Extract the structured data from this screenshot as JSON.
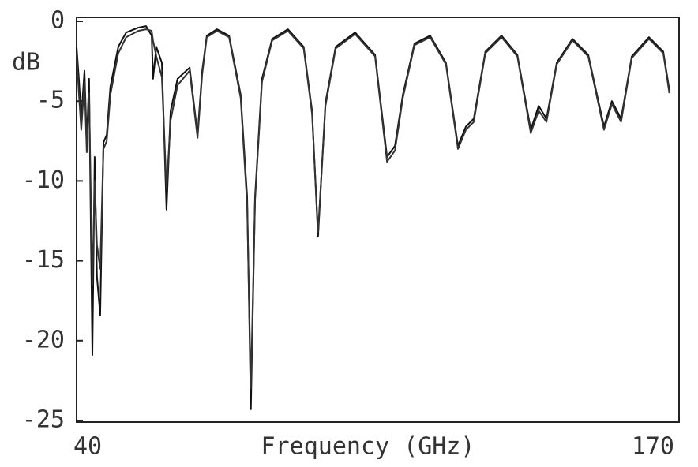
{
  "chart_data": {
    "type": "line",
    "x_label": "Frequency (GHz)",
    "y_label": "dB",
    "x": [
      40.0,
      40.5,
      41.0,
      41.7,
      42.2,
      42.7,
      43.4,
      43.9,
      44.4,
      45.1,
      45.8,
      46.5,
      47.3,
      49.0,
      50.7,
      53.3,
      55.0,
      56.2,
      56.5,
      57.2,
      58.4,
      59.4,
      60.3,
      61.8,
      64.4,
      66.1,
      67.1,
      68.1,
      70.3,
      72.9,
      75.4,
      76.8,
      77.6,
      78.5,
      80.0,
      82.2,
      85.6,
      89.0,
      90.8,
      92.1,
      93.7,
      95.9,
      100.1,
      104.4,
      107.0,
      108.7,
      110.4,
      112.9,
      116.3,
      119.7,
      122.3,
      124.0,
      125.7,
      128.2,
      131.7,
      135.1,
      138.0,
      139.7,
      141.4,
      143.6,
      147.0,
      150.4,
      153.8,
      155.5,
      157.5,
      159.8,
      163.5,
      166.6,
      167.9
    ],
    "series": [
      {
        "color": "#111111",
        "values": [
          -1.6,
          -3.6,
          -6.1,
          -3.1,
          -7.6,
          -3.6,
          -20.9,
          -8.5,
          -16,
          -18.4,
          -7.6,
          -7.1,
          -4.1,
          -1.6,
          -0.7,
          -0.4,
          -0.3,
          -0.9,
          -3.6,
          -1.6,
          -2.6,
          -11.8,
          -5.6,
          -3.6,
          -2.9,
          -7.1,
          -3.1,
          -0.9,
          -0.5,
          -0.9,
          -4.6,
          -11,
          -24.3,
          -11,
          -3.6,
          -1.1,
          -0.5,
          -1.6,
          -5.6,
          -13.5,
          -5.1,
          -1.6,
          -0.7,
          -2.1,
          -8.5,
          -7.8,
          -4.6,
          -1.4,
          -0.9,
          -2.6,
          -7.8,
          -6.6,
          -6.1,
          -1.9,
          -0.9,
          -2.1,
          -6.8,
          -5.3,
          -6.1,
          -2.6,
          -1.1,
          -2.1,
          -6.6,
          -5,
          -6.1,
          -2.2,
          -1,
          -1.9,
          -4.3
        ]
      },
      {
        "color": "#333333",
        "values": [
          -2.0,
          -4.5,
          -6.8,
          -3.8,
          -8.2,
          -4.5,
          -16.5,
          -10,
          -14,
          -15.5,
          -8,
          -7.5,
          -4.6,
          -2.0,
          -1.0,
          -0.6,
          -0.5,
          -0.6,
          -1.2,
          -2.2,
          -3.5,
          -10.5,
          -6.2,
          -4.0,
          -3.1,
          -7.3,
          -3.3,
          -1.0,
          -0.6,
          -1.0,
          -4.8,
          -11.5,
          -23,
          -11.2,
          -3.8,
          -1.2,
          -0.6,
          -1.7,
          -5.8,
          -13.2,
          -5.3,
          -1.7,
          -0.8,
          -2.2,
          -8.8,
          -8.1,
          -4.8,
          -1.5,
          -1.0,
          -2.7,
          -8.0,
          -6.8,
          -6.3,
          -2.0,
          -1.0,
          -2.2,
          -7.0,
          -5.6,
          -6.3,
          -2.7,
          -1.2,
          -2.2,
          -6.8,
          -5.2,
          -6.3,
          -2.3,
          -1.1,
          -2.0,
          -4.5
        ]
      }
    ],
    "xlim": [
      40,
      170
    ],
    "xticks": [
      40,
      170
    ],
    "ylim": [
      -25,
      0
    ],
    "yticks": [
      0,
      -5,
      -10,
      -15,
      -20,
      -25
    ]
  }
}
